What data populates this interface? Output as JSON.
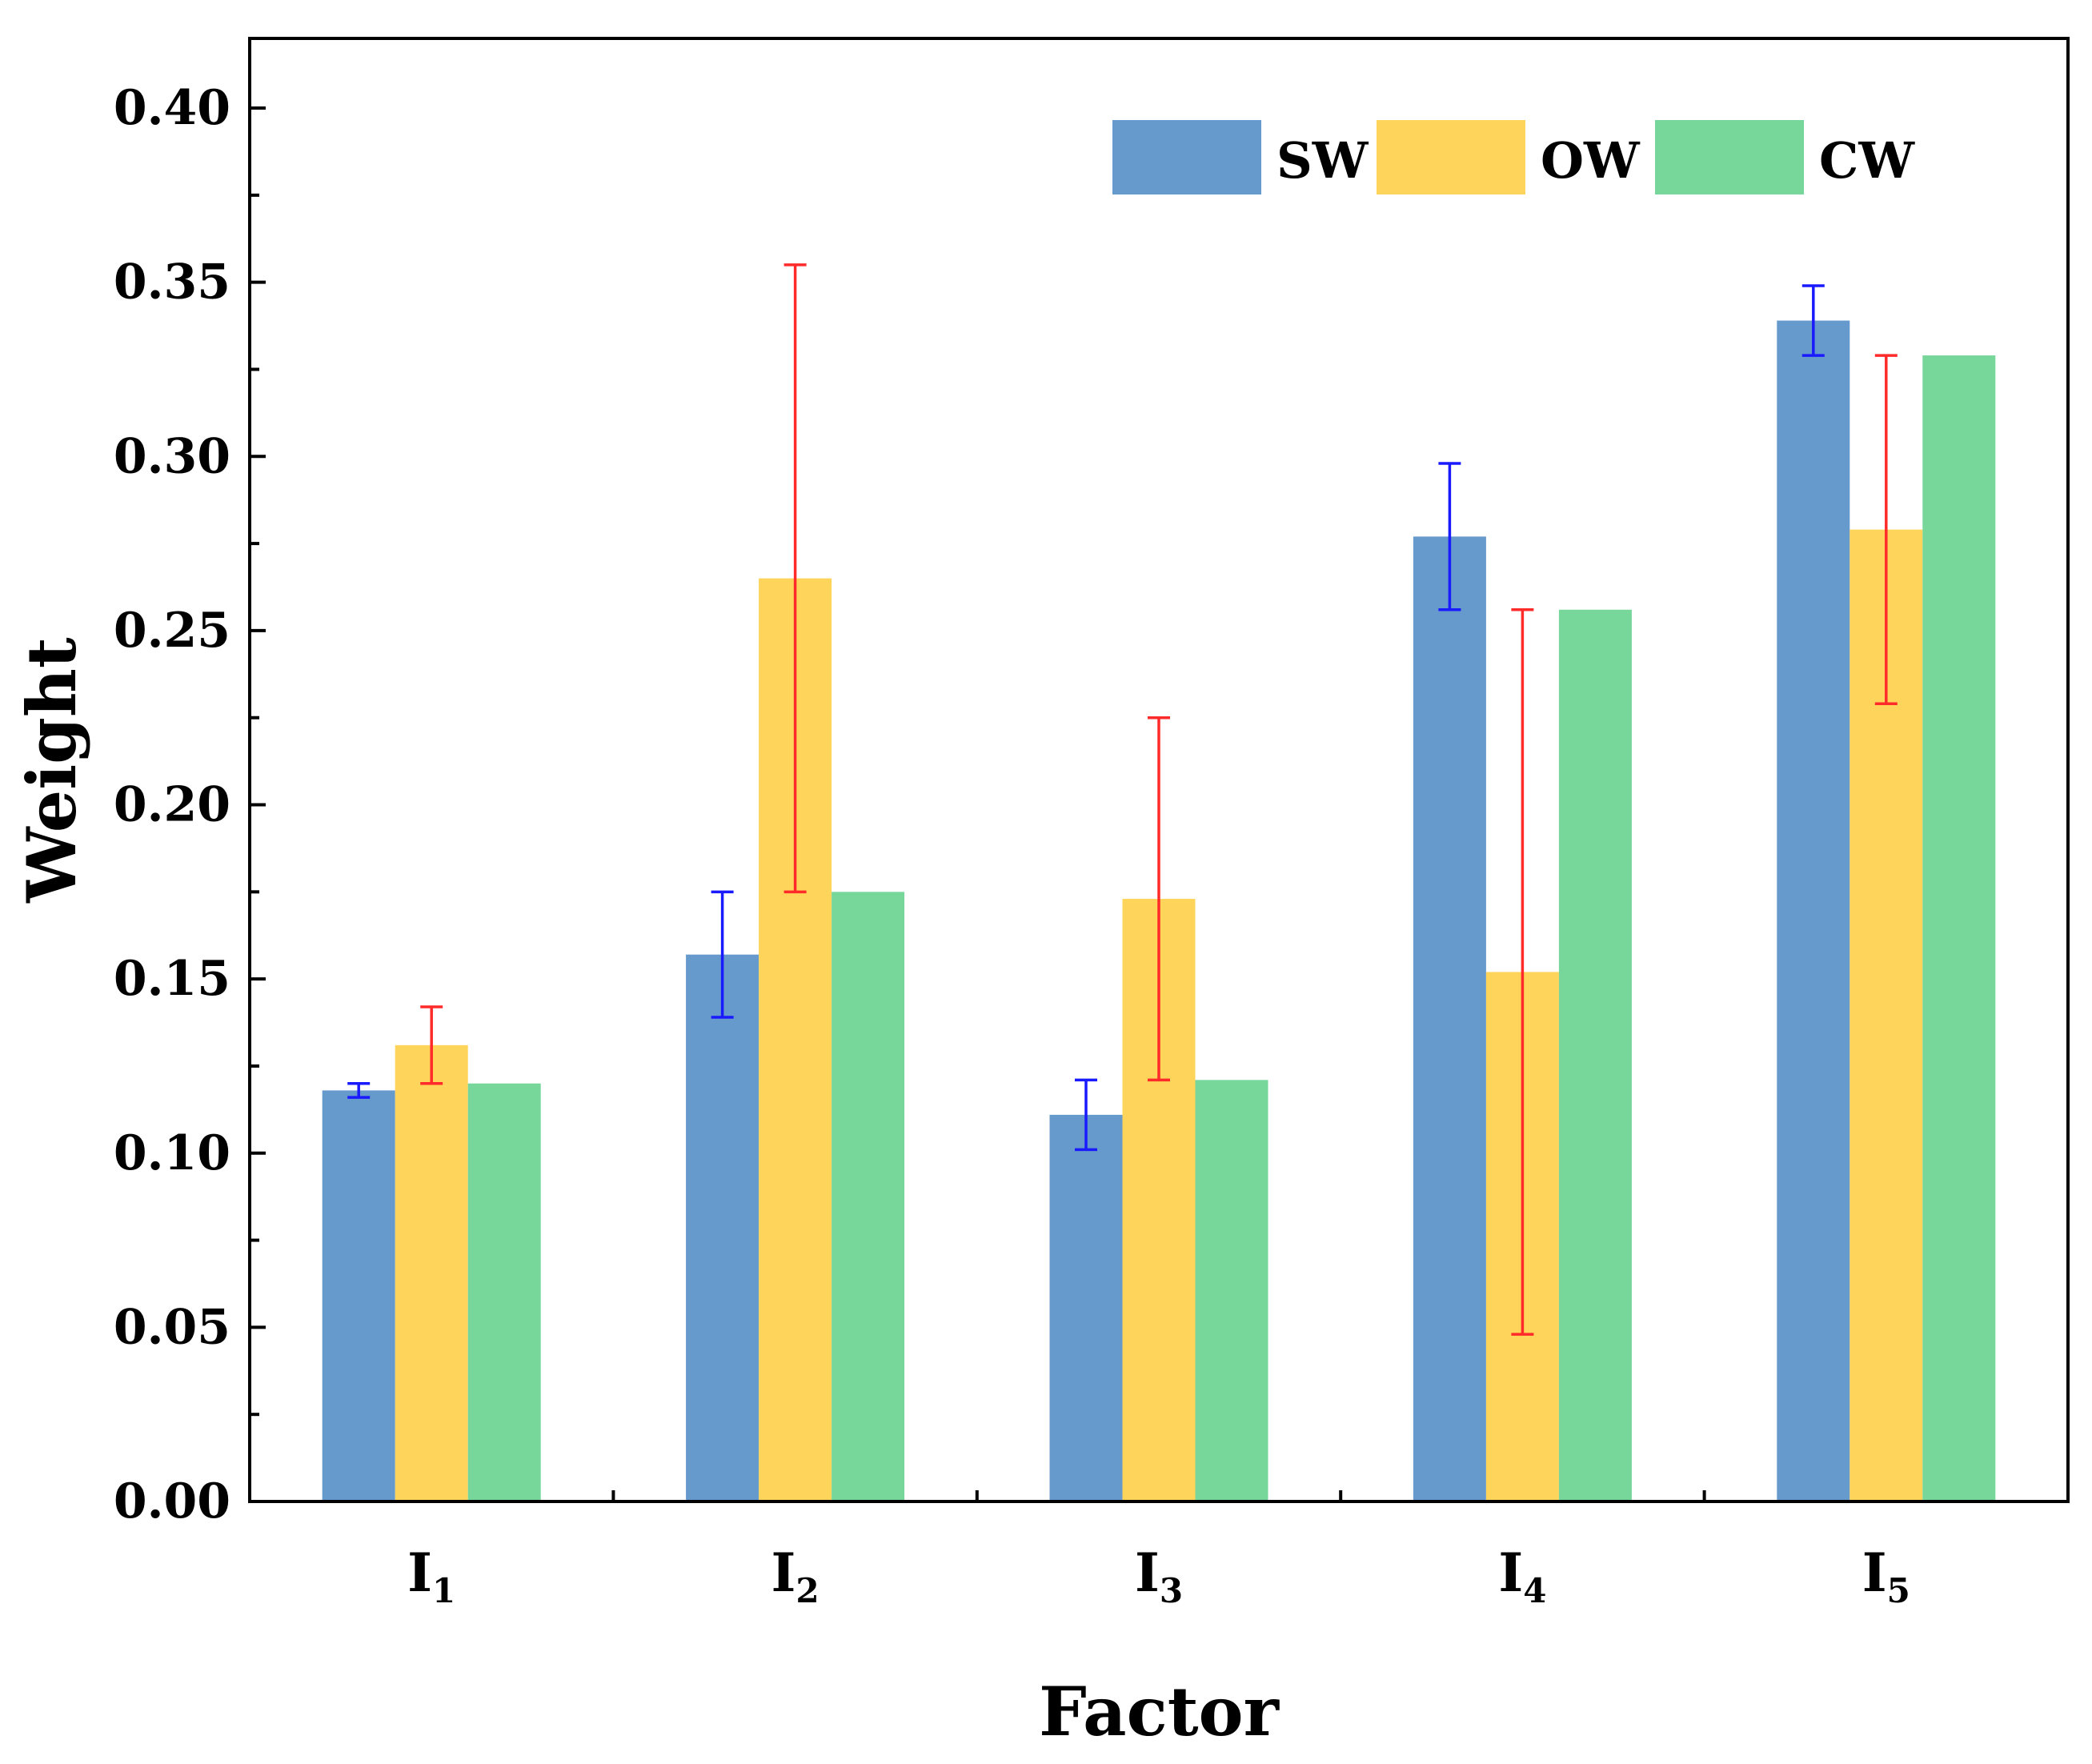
{
  "chart_data": {
    "type": "bar",
    "categories": [
      {
        "main": "I",
        "sub": "1"
      },
      {
        "main": "I",
        "sub": "2"
      },
      {
        "main": "I",
        "sub": "3"
      },
      {
        "main": "I",
        "sub": "4"
      },
      {
        "main": "I",
        "sub": "5"
      }
    ],
    "series": [
      {
        "name": "SW",
        "color": "#6699cc",
        "error_color": "#1a1aff",
        "values": [
          0.118,
          0.157,
          0.111,
          0.277,
          0.339
        ],
        "error_low": [
          0.116,
          0.139,
          0.101,
          0.256,
          0.329
        ],
        "error_high": [
          0.12,
          0.175,
          0.121,
          0.298,
          0.349
        ]
      },
      {
        "name": "OW",
        "color": "#ffd45a",
        "error_color": "#ff2a2a",
        "values": [
          0.131,
          0.265,
          0.173,
          0.152,
          0.279
        ],
        "error_low": [
          0.12,
          0.175,
          0.121,
          0.048,
          0.229
        ],
        "error_high": [
          0.142,
          0.355,
          0.225,
          0.256,
          0.329
        ]
      },
      {
        "name": "CW",
        "color": "#77d699",
        "values": [
          0.12,
          0.175,
          0.121,
          0.256,
          0.329
        ]
      }
    ],
    "xlabel": "Factor",
    "ylabel": "Weight",
    "ylim": [
      0.0,
      0.42
    ],
    "yticks": [
      "0.00",
      "0.05",
      "0.10",
      "0.15",
      "0.20",
      "0.25",
      "0.30",
      "0.35",
      "0.40"
    ],
    "grid": false,
    "legend_position": "top-right"
  }
}
